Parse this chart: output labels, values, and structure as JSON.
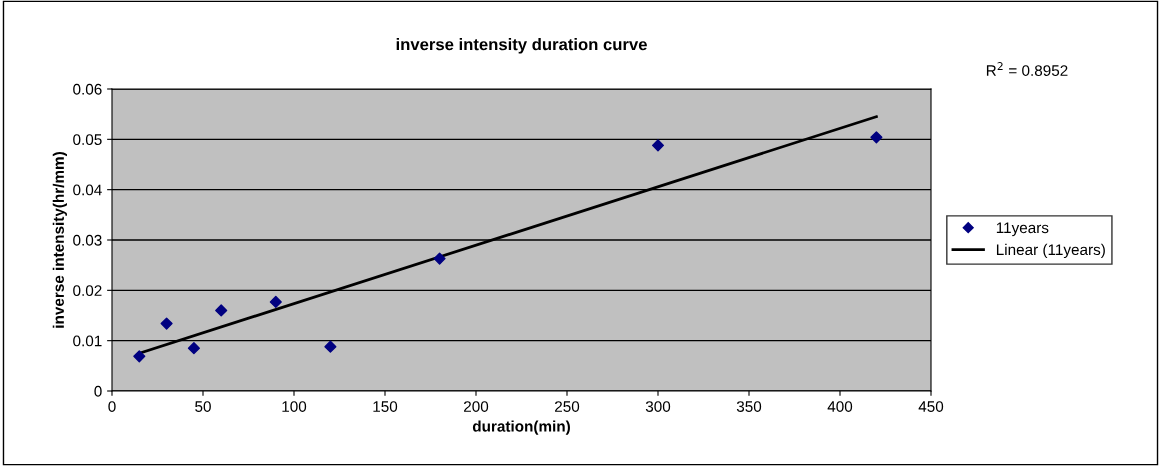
{
  "chart_data": {
    "type": "scatter",
    "title": "inverse intensity duration curve",
    "xlabel": "duration(min)",
    "ylabel": "inverse intensity(hr/mm)",
    "series": [
      {
        "name": "11years",
        "color": "#000080",
        "marker": "diamond",
        "x": [
          15,
          30,
          45,
          60,
          90,
          120,
          180,
          300,
          420
        ],
        "values": [
          0.0069,
          0.0134,
          0.0085,
          0.016,
          0.0177,
          0.0088,
          0.0263,
          0.0488,
          0.0504
        ]
      },
      {
        "name": "Linear (11years)",
        "type": "line",
        "color": "#000000",
        "line_style": "solid",
        "x": [
          15,
          420
        ],
        "values": [
          0.0075,
          0.0545
        ]
      }
    ],
    "annotations": [
      "R$^{2}$ = 0.8952"
    ],
    "xlim": [
      0,
      450
    ],
    "xticks": [
      0,
      50,
      100,
      150,
      200,
      250,
      300,
      350,
      400,
      450
    ],
    "ylim": [
      0,
      0.06
    ],
    "yticks": [
      0,
      0.01,
      0.02,
      0.03,
      0.04,
      0.05,
      0.06
    ],
    "grid": "y",
    "legend": "right"
  }
}
